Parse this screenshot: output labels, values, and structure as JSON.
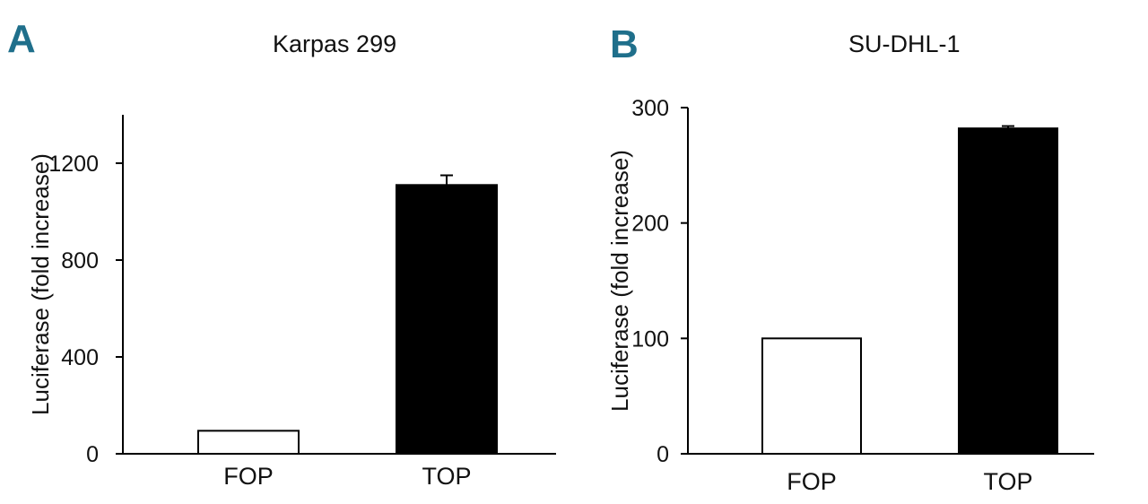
{
  "accent_color": "#1f6f8b",
  "chart_data": [
    {
      "panel": "A",
      "type": "bar",
      "title": "Karpas 299",
      "ylabel": "Luciferase (fold increase)",
      "xlabel": "",
      "categories": [
        "FOP",
        "TOP"
      ],
      "values": [
        95,
        1110
      ],
      "errors": [
        0,
        40
      ],
      "bar_fills": [
        "#ffffff",
        "#000000"
      ],
      "ylim": [
        0,
        1400
      ],
      "yticks": [
        0,
        400,
        800,
        1200
      ]
    },
    {
      "panel": "B",
      "type": "bar",
      "title": "SU-DHL-1",
      "ylabel": "Luciferase (fold increase)",
      "xlabel": "",
      "categories": [
        "FOP",
        "TOP"
      ],
      "values": [
        100,
        282
      ],
      "errors": [
        0,
        2
      ],
      "bar_fills": [
        "#ffffff",
        "#000000"
      ],
      "ylim": [
        0,
        300
      ],
      "yticks": [
        0,
        100,
        200,
        300
      ]
    }
  ]
}
